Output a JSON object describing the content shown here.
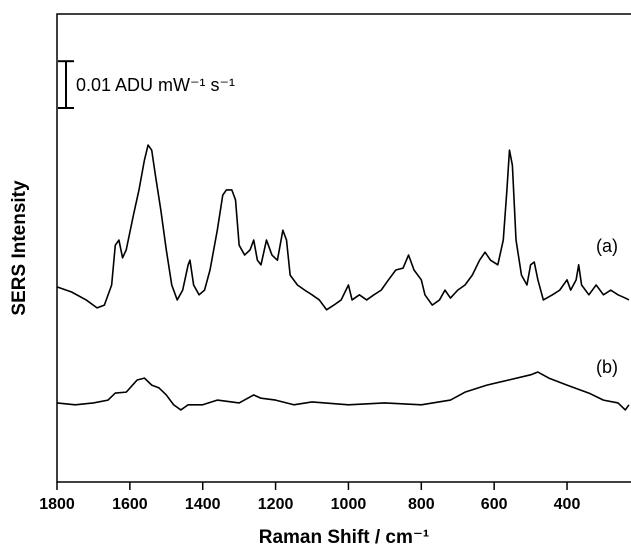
{
  "chart_data": {
    "type": "line",
    "xlabel": "Raman Shift / cm⁻¹",
    "ylabel": "SERS Intensity",
    "xlim": [
      1800,
      230
    ],
    "xticks": [
      1800,
      1600,
      1400,
      1200,
      1000,
      800,
      600,
      400
    ],
    "ylim": [
      0,
      0.1
    ],
    "scale_bar": {
      "value": 0.01,
      "label": "0.01 ADU mW⁻¹ s⁻¹"
    },
    "series": [
      {
        "name": "(a)",
        "color": "#000000",
        "x": [
          1800,
          1760,
          1720,
          1690,
          1670,
          1650,
          1640,
          1630,
          1620,
          1610,
          1590,
          1575,
          1560,
          1550,
          1540,
          1530,
          1515,
          1500,
          1485,
          1470,
          1455,
          1440,
          1435,
          1425,
          1410,
          1395,
          1380,
          1360,
          1345,
          1335,
          1320,
          1310,
          1300,
          1285,
          1270,
          1260,
          1250,
          1240,
          1225,
          1210,
          1195,
          1180,
          1170,
          1160,
          1140,
          1120,
          1100,
          1080,
          1060,
          1040,
          1020,
          1000,
          990,
          970,
          950,
          930,
          910,
          890,
          870,
          850,
          835,
          820,
          800,
          790,
          770,
          750,
          735,
          720,
          700,
          680,
          660,
          640,
          625,
          610,
          590,
          575,
          565,
          558,
          550,
          540,
          525,
          510,
          500,
          490,
          480,
          465,
          440,
          420,
          400,
          390,
          375,
          368,
          360,
          340,
          320,
          300,
          280,
          260,
          240,
          230
        ],
        "values": [
          0.0417,
          0.0406,
          0.0389,
          0.0372,
          0.0378,
          0.0421,
          0.0506,
          0.0517,
          0.0479,
          0.0496,
          0.0571,
          0.0624,
          0.0688,
          0.072,
          0.0709,
          0.0656,
          0.0581,
          0.0496,
          0.0421,
          0.0389,
          0.041,
          0.0464,
          0.0474,
          0.0421,
          0.04,
          0.041,
          0.0453,
          0.0538,
          0.0613,
          0.0624,
          0.0624,
          0.0603,
          0.0506,
          0.0485,
          0.0496,
          0.0517,
          0.0474,
          0.0464,
          0.0517,
          0.0485,
          0.0474,
          0.0538,
          0.0517,
          0.0442,
          0.0421,
          0.041,
          0.04,
          0.0389,
          0.0368,
          0.0378,
          0.0389,
          0.0421,
          0.0389,
          0.04,
          0.0389,
          0.04,
          0.041,
          0.0432,
          0.0453,
          0.0457,
          0.0485,
          0.0453,
          0.0432,
          0.04,
          0.0378,
          0.0389,
          0.041,
          0.0393,
          0.041,
          0.0421,
          0.0442,
          0.0474,
          0.0491,
          0.0474,
          0.0464,
          0.0517,
          0.0624,
          0.0709,
          0.0677,
          0.0517,
          0.0442,
          0.0421,
          0.0464,
          0.047,
          0.0432,
          0.0389,
          0.04,
          0.041,
          0.0432,
          0.041,
          0.0432,
          0.0464,
          0.0421,
          0.04,
          0.0421,
          0.04,
          0.041,
          0.04,
          0.0393,
          0.0389
        ]
      },
      {
        "name": "(b)",
        "color": "#000000",
        "x": [
          1800,
          1750,
          1700,
          1660,
          1640,
          1610,
          1580,
          1560,
          1540,
          1520,
          1500,
          1480,
          1460,
          1440,
          1400,
          1360,
          1300,
          1260,
          1240,
          1200,
          1150,
          1100,
          1000,
          900,
          800,
          720,
          680,
          620,
          560,
          500,
          480,
          450,
          400,
          340,
          300,
          260,
          240,
          230
        ],
        "values": [
          0.0169,
          0.0165,
          0.0169,
          0.0175,
          0.019,
          0.0192,
          0.0218,
          0.0222,
          0.0207,
          0.0201,
          0.0186,
          0.0165,
          0.0154,
          0.0165,
          0.0165,
          0.0175,
          0.0169,
          0.0186,
          0.0179,
          0.0175,
          0.0165,
          0.0171,
          0.0165,
          0.0169,
          0.0165,
          0.0175,
          0.0192,
          0.0207,
          0.0218,
          0.0229,
          0.0235,
          0.0222,
          0.0207,
          0.019,
          0.0175,
          0.0169,
          0.0154,
          0.0165
        ]
      }
    ]
  }
}
